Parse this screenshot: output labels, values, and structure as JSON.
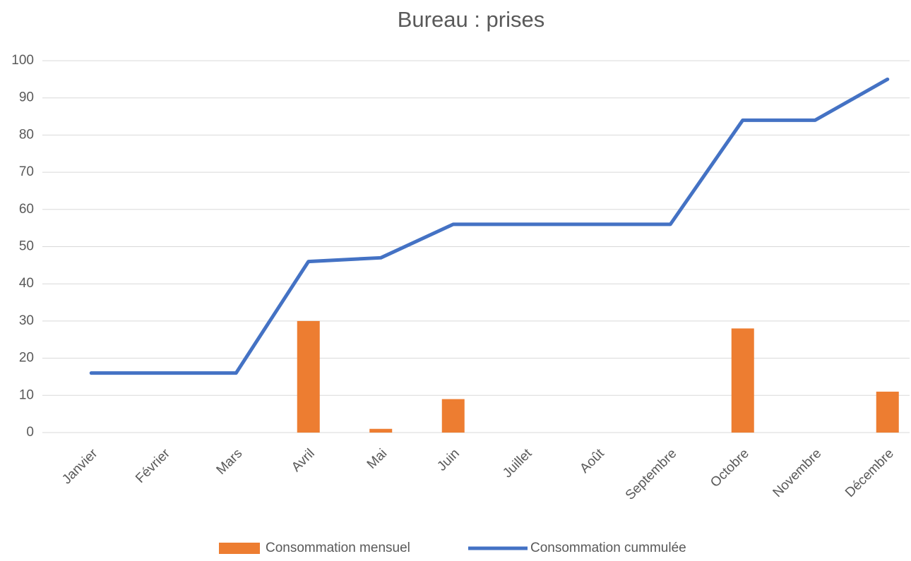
{
  "chart_data": {
    "type": "bar+line",
    "title": "Bureau : prises",
    "categories": [
      "Janvier",
      "Février",
      "Mars",
      "Avril",
      "Mai",
      "Juin",
      "Juillet",
      "Août",
      "Septembre",
      "Octobre",
      "Novembre",
      "Décembre"
    ],
    "series": [
      {
        "name": "Consommation mensuel",
        "type": "bar",
        "color": "#ed7d31",
        "values": [
          0,
          0,
          0,
          30,
          1,
          9,
          0,
          0,
          0,
          28,
          0,
          11
        ]
      },
      {
        "name": "Consommation cummulée",
        "type": "line",
        "color": "#4472c4",
        "values": [
          16,
          16,
          16,
          46,
          47,
          56,
          56,
          56,
          56,
          84,
          84,
          95
        ]
      }
    ],
    "ylim": [
      0,
      100
    ],
    "yticks": [
      0,
      10,
      20,
      30,
      40,
      50,
      60,
      70,
      80,
      90,
      100
    ],
    "grid": true,
    "legend": "bottom"
  }
}
